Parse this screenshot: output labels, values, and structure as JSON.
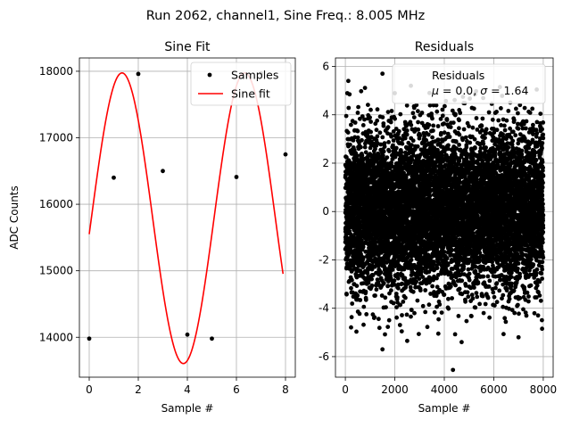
{
  "suptitle": "Run 2062, channel1, Sine Freq.: 8.005 MHz",
  "chart_data": [
    {
      "type": "scatter+line",
      "title": "Sine Fit",
      "xlabel": "Sample #",
      "ylabel": "ADC Counts",
      "xlim": [
        -0.4,
        8.4
      ],
      "ylim": [
        13400,
        18200
      ],
      "xticks": [
        0,
        2,
        4,
        6,
        8
      ],
      "yticks": [
        14000,
        15000,
        16000,
        17000,
        18000
      ],
      "grid": true,
      "legend": {
        "placement": "top-right",
        "entries": [
          "Samples",
          "Sine fit"
        ]
      },
      "samples": {
        "name": "Samples",
        "color": "#000000",
        "x": [
          0,
          1,
          2,
          3,
          4,
          5,
          6,
          7,
          8
        ],
        "y": [
          13980,
          16400,
          17960,
          16500,
          14040,
          13980,
          16410,
          17970,
          16750
        ]
      },
      "fit": {
        "name": "Sine fit",
        "color": "#ff0000",
        "offset": 15790,
        "amplitude": 2185,
        "period": 5.0,
        "phase": -0.11,
        "x_range": [
          0,
          7.9
        ]
      }
    },
    {
      "type": "scatter",
      "title": "Residuals",
      "xlabel": "Sample #",
      "ylabel": "",
      "xlim": [
        -400,
        8400
      ],
      "ylim": [
        -6.85,
        6.35
      ],
      "xticks": [
        0,
        2000,
        4000,
        6000,
        8000
      ],
      "yticks": [
        -6,
        -4,
        -2,
        0,
        2,
        4,
        6
      ],
      "grid": true,
      "legend": {
        "placement": "top-right",
        "entries": [
          "Residuals",
          "$\\mu$ = 0.0, $\\sigma$ = 1.64"
        ]
      },
      "residuals": {
        "name": "Residuals",
        "color": "#000000",
        "mean": 0.0,
        "std": 1.64,
        "n": 8000,
        "x_range": [
          0,
          7999
        ],
        "outliers": [
          {
            "x": 120,
            "y": 5.4
          },
          {
            "x": 1500,
            "y": 5.7
          },
          {
            "x": 2650,
            "y": 5.2
          },
          {
            "x": 3400,
            "y": 4.9
          },
          {
            "x": 4350,
            "y": -6.55
          },
          {
            "x": 1500,
            "y": -5.7
          },
          {
            "x": 4700,
            "y": -5.4
          },
          {
            "x": 2500,
            "y": -5.35
          },
          {
            "x": 7000,
            "y": -5.2
          }
        ]
      }
    }
  ]
}
